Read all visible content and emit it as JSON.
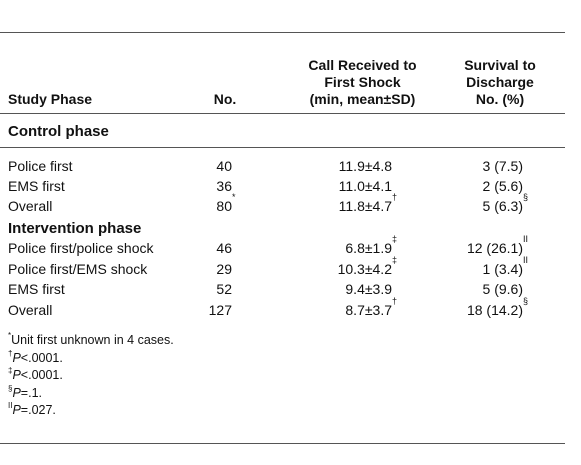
{
  "table": {
    "headers": [
      "Study Phase",
      "No.",
      "Call Received to First Shock (min, mean±SD)",
      "Survival to Discharge No. (%)"
    ],
    "header_lines": [
      [
        "Study Phase"
      ],
      [
        "No."
      ],
      [
        "Call Received to",
        "First Shock",
        "(min, mean±SD)"
      ],
      [
        "Survival to",
        "Discharge",
        "No. (%)"
      ]
    ],
    "sections": [
      {
        "title": "Control phase",
        "rows": [
          [
            {
              "text": "Police first"
            },
            {
              "text": "40"
            },
            {
              "text": "11.9±4.8"
            },
            {
              "text": "3 (7.5)"
            }
          ],
          [
            {
              "text": "EMS first"
            },
            {
              "text": "36"
            },
            {
              "text": "11.0±4.1"
            },
            {
              "text": "2 (5.6)"
            }
          ],
          [
            {
              "text": "Overall"
            },
            {
              "text": "80",
              "note": "*"
            },
            {
              "text": "11.8±4.7",
              "note": "†"
            },
            {
              "text": "5 (6.3)",
              "note": "§"
            }
          ]
        ]
      },
      {
        "title": "Intervention phase",
        "rows": [
          [
            {
              "text": "Police first/police shock"
            },
            {
              "text": "46"
            },
            {
              "text": "6.8±1.9",
              "note": "‡"
            },
            {
              "text": "12 (26.1)",
              "note": "II"
            }
          ],
          [
            {
              "text": "Police first/EMS shock"
            },
            {
              "text": "29"
            },
            {
              "text": "10.3±4.2",
              "note": "‡"
            },
            {
              "text": "1 (3.4)",
              "note": "II"
            }
          ],
          [
            {
              "text": "EMS first"
            },
            {
              "text": "52"
            },
            {
              "text": "9.4±3.9"
            },
            {
              "text": "5 (9.6)"
            }
          ],
          [
            {
              "text": "Overall"
            },
            {
              "text": "127"
            },
            {
              "text": "8.7±3.7",
              "note": "†"
            },
            {
              "text": "18 (14.2)",
              "note": "§"
            }
          ]
        ]
      }
    ],
    "footnotes": [
      {
        "mark": "*",
        "text": "Unit first unknown in 4 cases."
      },
      {
        "mark": "†",
        "p": "P",
        "text": "<.0001."
      },
      {
        "mark": "‡",
        "p": "P",
        "text": "<.0001."
      },
      {
        "mark": "§",
        "p": "P",
        "text": "=.1."
      },
      {
        "mark": "II",
        "p": "P",
        "text": "=.027."
      }
    ]
  }
}
